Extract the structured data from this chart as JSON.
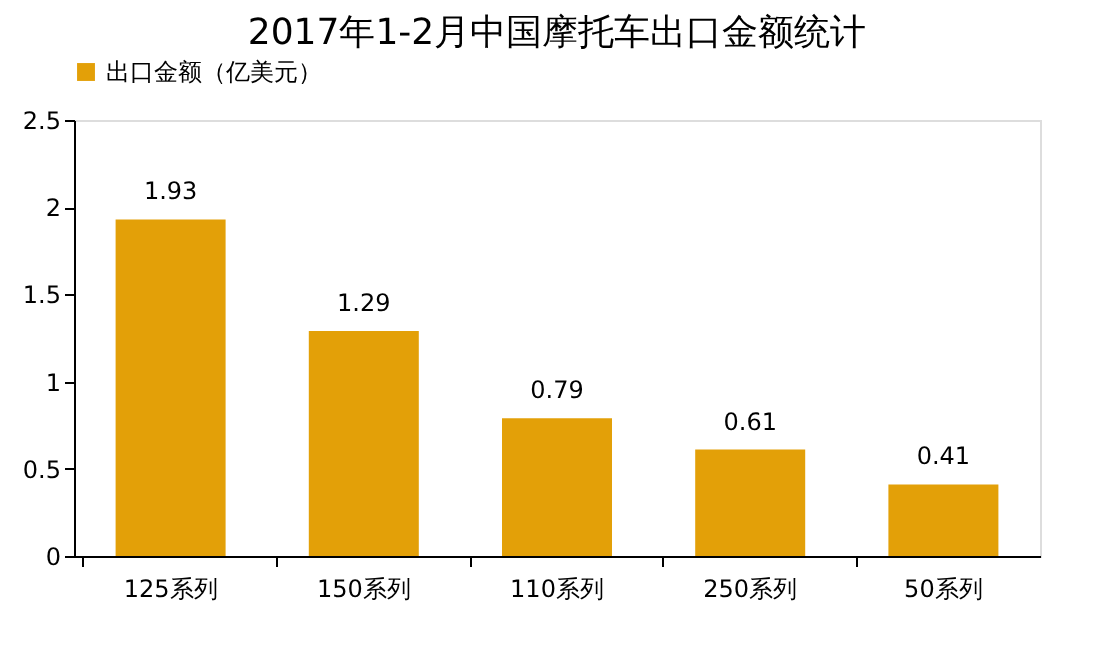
{
  "chart_data": {
    "type": "bar",
    "title": "2017年1-2月中国摩托车出口金额统计",
    "categories": [
      "125系列",
      "150系列",
      "110系列",
      "250系列",
      "50系列"
    ],
    "series": [
      {
        "name": "出口金额（亿美元）",
        "color": "#e3a008",
        "values": [
          1.93,
          1.29,
          0.79,
          0.61,
          0.41
        ]
      }
    ],
    "ylim": [
      0,
      2.5
    ],
    "yticks": [
      0,
      0.5,
      1,
      1.5,
      2,
      2.5
    ],
    "grid": false,
    "legend": "top",
    "data_labels": true
  }
}
